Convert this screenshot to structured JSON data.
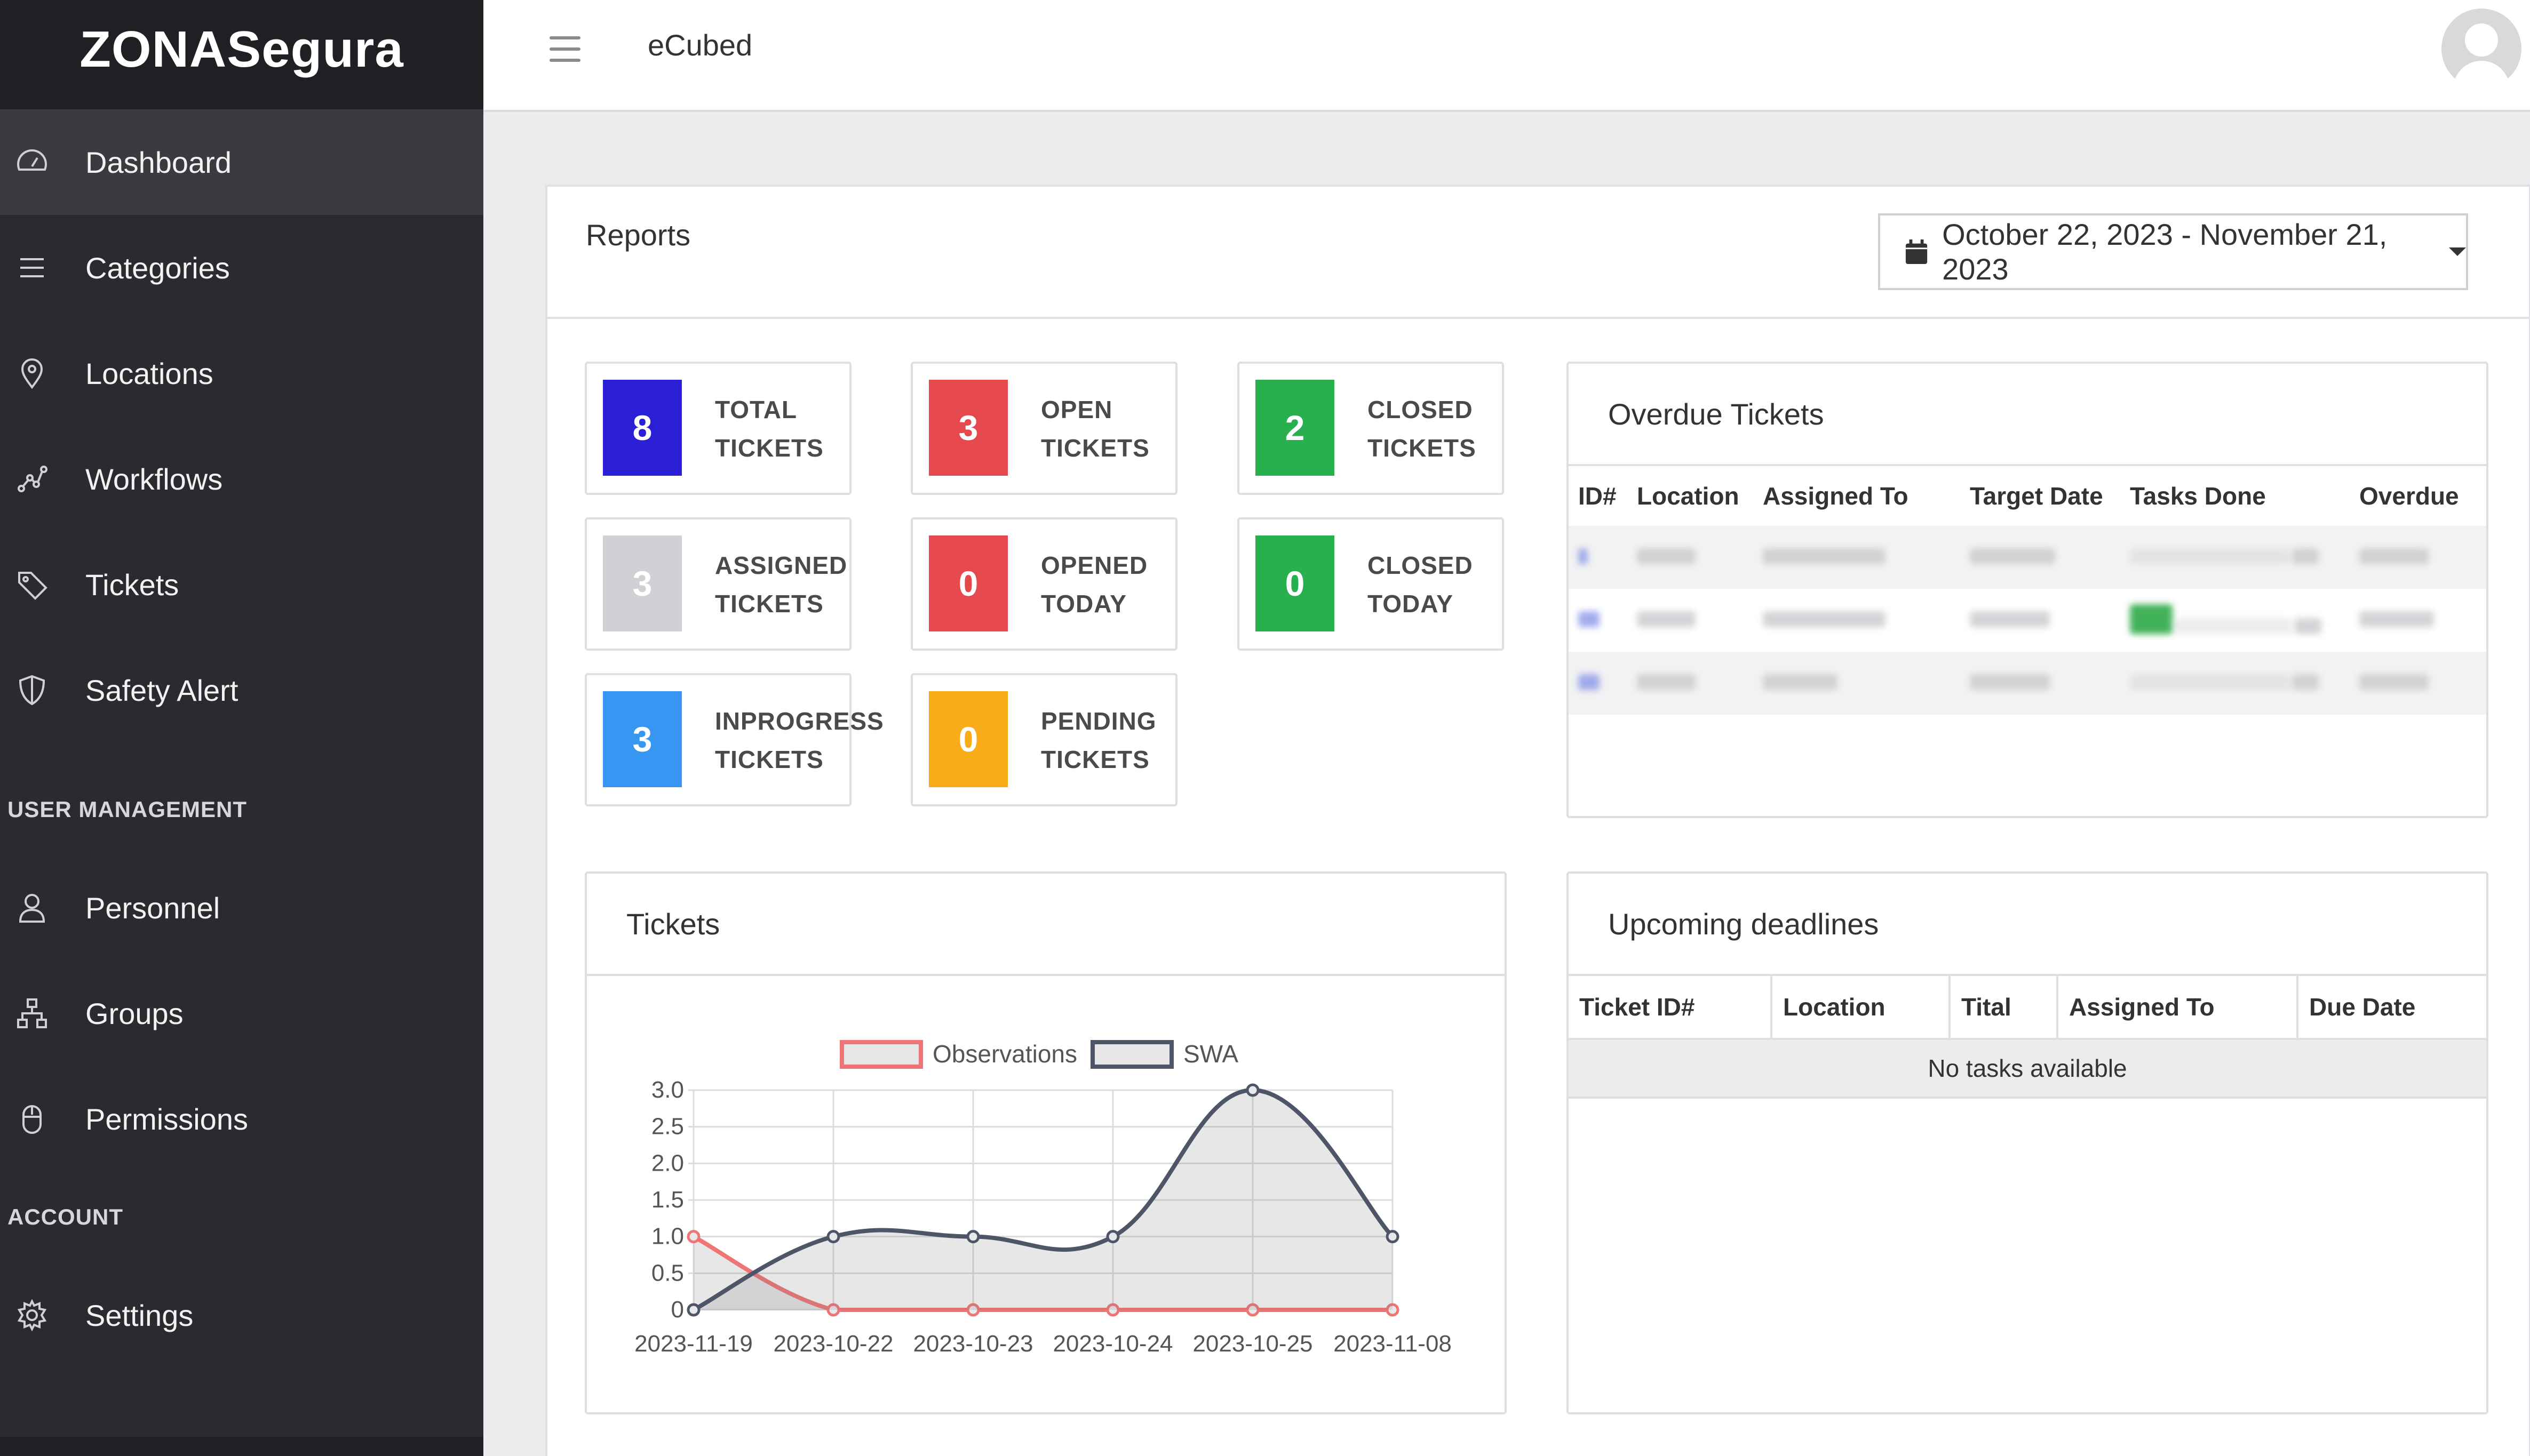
{
  "sidebar": {
    "brand": "ZONASegura",
    "items": [
      {
        "label": "Dashboard",
        "icon": "gauge-icon"
      },
      {
        "label": "Categories",
        "icon": "list-icon"
      },
      {
        "label": "Locations",
        "icon": "map-pin-icon"
      },
      {
        "label": "Workflows",
        "icon": "workflow-icon"
      },
      {
        "label": "Tickets",
        "icon": "tag-icon"
      },
      {
        "label": "Safety Alert",
        "icon": "shield-icon"
      }
    ],
    "user_management_heading": "USER MANAGEMENT",
    "user_items": [
      {
        "label": "Personnel",
        "icon": "person-icon"
      },
      {
        "label": "Groups",
        "icon": "sitemap-icon"
      },
      {
        "label": "Permissions",
        "icon": "mouse-icon"
      }
    ],
    "account_heading": "ACCOUNT",
    "account_items": [
      {
        "label": "Settings",
        "icon": "gear-icon"
      }
    ]
  },
  "header": {
    "title": "eCubed"
  },
  "reports": {
    "title": "Reports",
    "date_range": "October 22, 2023 - November 21, 2023"
  },
  "stats": [
    {
      "value": "8",
      "line1": "TOTAL",
      "line2": "TICKETS",
      "color": "#2b1fd6"
    },
    {
      "value": "3",
      "line1": "OPEN",
      "line2": "TICKETS",
      "color": "#e5484d"
    },
    {
      "value": "2",
      "line1": "CLOSED",
      "line2": "TICKETS",
      "color": "#28b04f"
    },
    {
      "value": "3",
      "line1": "ASSIGNED",
      "line2": "TICKETS",
      "color": "#cfd1d4"
    },
    {
      "value": "0",
      "line1": "OPENED",
      "line2": "TODAY",
      "color": "#e5484d"
    },
    {
      "value": "0",
      "line1": "CLOSED",
      "line2": "TODAY",
      "color": "#28b04f"
    },
    {
      "value": "3",
      "line1": "INPROGRESS",
      "line2": "TICKETS",
      "color": "#3796f2"
    },
    {
      "value": "0",
      "line1": "PENDING",
      "line2": "TICKETS",
      "color": "#f8ac1a"
    }
  ],
  "overdue": {
    "title": "Overdue Tickets",
    "columns": [
      "ID#",
      "Location",
      "Assigned To",
      "Target Date",
      "Tasks Done",
      "Overdue"
    ]
  },
  "tickets_chart": {
    "title": "Tickets"
  },
  "chart_data": {
    "type": "line",
    "categories": [
      "2023-11-19",
      "2023-10-22",
      "2023-10-23",
      "2023-10-24",
      "2023-10-25",
      "2023-11-08"
    ],
    "series": [
      {
        "name": "Observations",
        "values": [
          1,
          0,
          0,
          0,
          0,
          0
        ],
        "color": "#ef7474"
      },
      {
        "name": "SWA",
        "values": [
          0,
          1,
          1,
          1,
          3,
          1
        ],
        "color": "#4d5566"
      }
    ],
    "ylim": [
      0,
      3
    ],
    "yticks": [
      "3.0",
      "2.5",
      "2.0",
      "1.5",
      "1.0",
      "0.5",
      "0"
    ],
    "legend": "top",
    "grid": true
  },
  "upcoming": {
    "title": "Upcoming deadlines",
    "columns": [
      "Ticket ID#",
      "Location",
      "Tital",
      "Assigned To",
      "Due Date"
    ],
    "empty_message": "No tasks available"
  }
}
